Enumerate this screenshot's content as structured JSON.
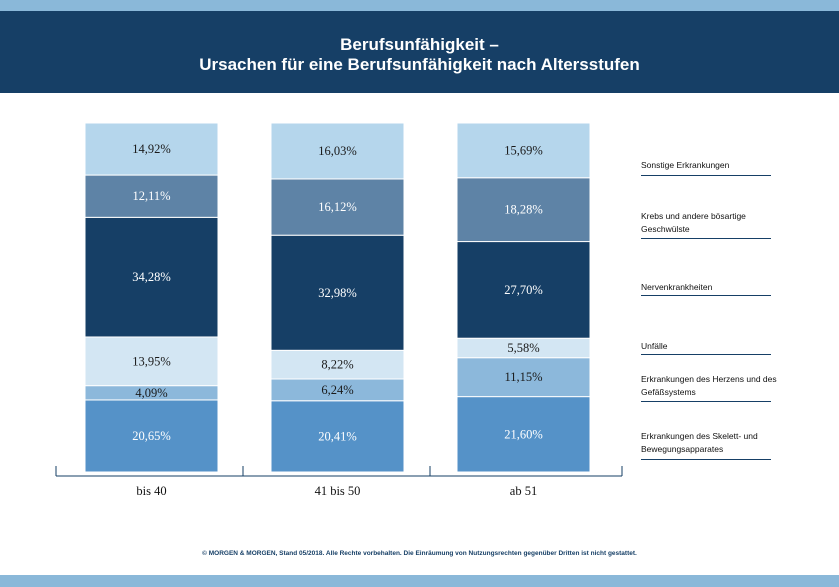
{
  "header": {
    "title": "Berufsunfähigkeit –",
    "subtitle": "Ursachen für eine Berufsunfähigkeit nach Altersstufen"
  },
  "footer": {
    "text": "© MORGEN & MORGEN, Stand 05/2018. Alle Rechte vorbehalten. Die Einräumung von Nutzungsrechten gegenüber Dritten ist nicht gestattet."
  },
  "colors": {
    "header_bg": "#163f66",
    "stripe": "#8ab8d9"
  },
  "chart_data": {
    "type": "bar",
    "stacked": true,
    "categories": [
      "bis 40",
      "41 bis 50",
      "ab 51"
    ],
    "series": [
      {
        "name": "Erkrankungen des Skelett- und Bewegungsapparates",
        "values": [
          20.65,
          20.41,
          21.6
        ],
        "labels": [
          "20,65%",
          "20,41%",
          "21,60%"
        ],
        "color": "#5592c8",
        "text_color": "#ffffff"
      },
      {
        "name": "Erkrankungen des Herzens und des Gefäßsystems",
        "values": [
          4.09,
          6.24,
          11.15
        ],
        "labels": [
          "4,09%",
          "6,24%",
          "11,15%"
        ],
        "color": "#8cb8db",
        "text_color": "#1a1a1a"
      },
      {
        "name": "Unfälle",
        "values": [
          13.95,
          8.22,
          5.58
        ],
        "labels": [
          "13,95%",
          "8,22%",
          "5,58%"
        ],
        "color": "#d3e6f3",
        "text_color": "#1a1a1a"
      },
      {
        "name": "Nervenkrankheiten",
        "values": [
          34.28,
          32.98,
          27.7
        ],
        "labels": [
          "34,28%",
          "32,98%",
          "27,70%"
        ],
        "color": "#163f66",
        "text_color": "#ffffff"
      },
      {
        "name": "Krebs und andere bösartige Geschwülste",
        "values": [
          12.11,
          16.12,
          18.28
        ],
        "labels": [
          "12,11%",
          "16,12%",
          "18,28%"
        ],
        "color": "#5e83a6",
        "text_color": "#ffffff"
      },
      {
        "name": "Sonstige Erkrankungen",
        "values": [
          14.92,
          16.03,
          15.69
        ],
        "labels": [
          "14,92%",
          "16,03%",
          "15,69%"
        ],
        "color": "#b5d6ec",
        "text_color": "#1a1a1a"
      }
    ],
    "legend_position": "right",
    "grid": false
  }
}
